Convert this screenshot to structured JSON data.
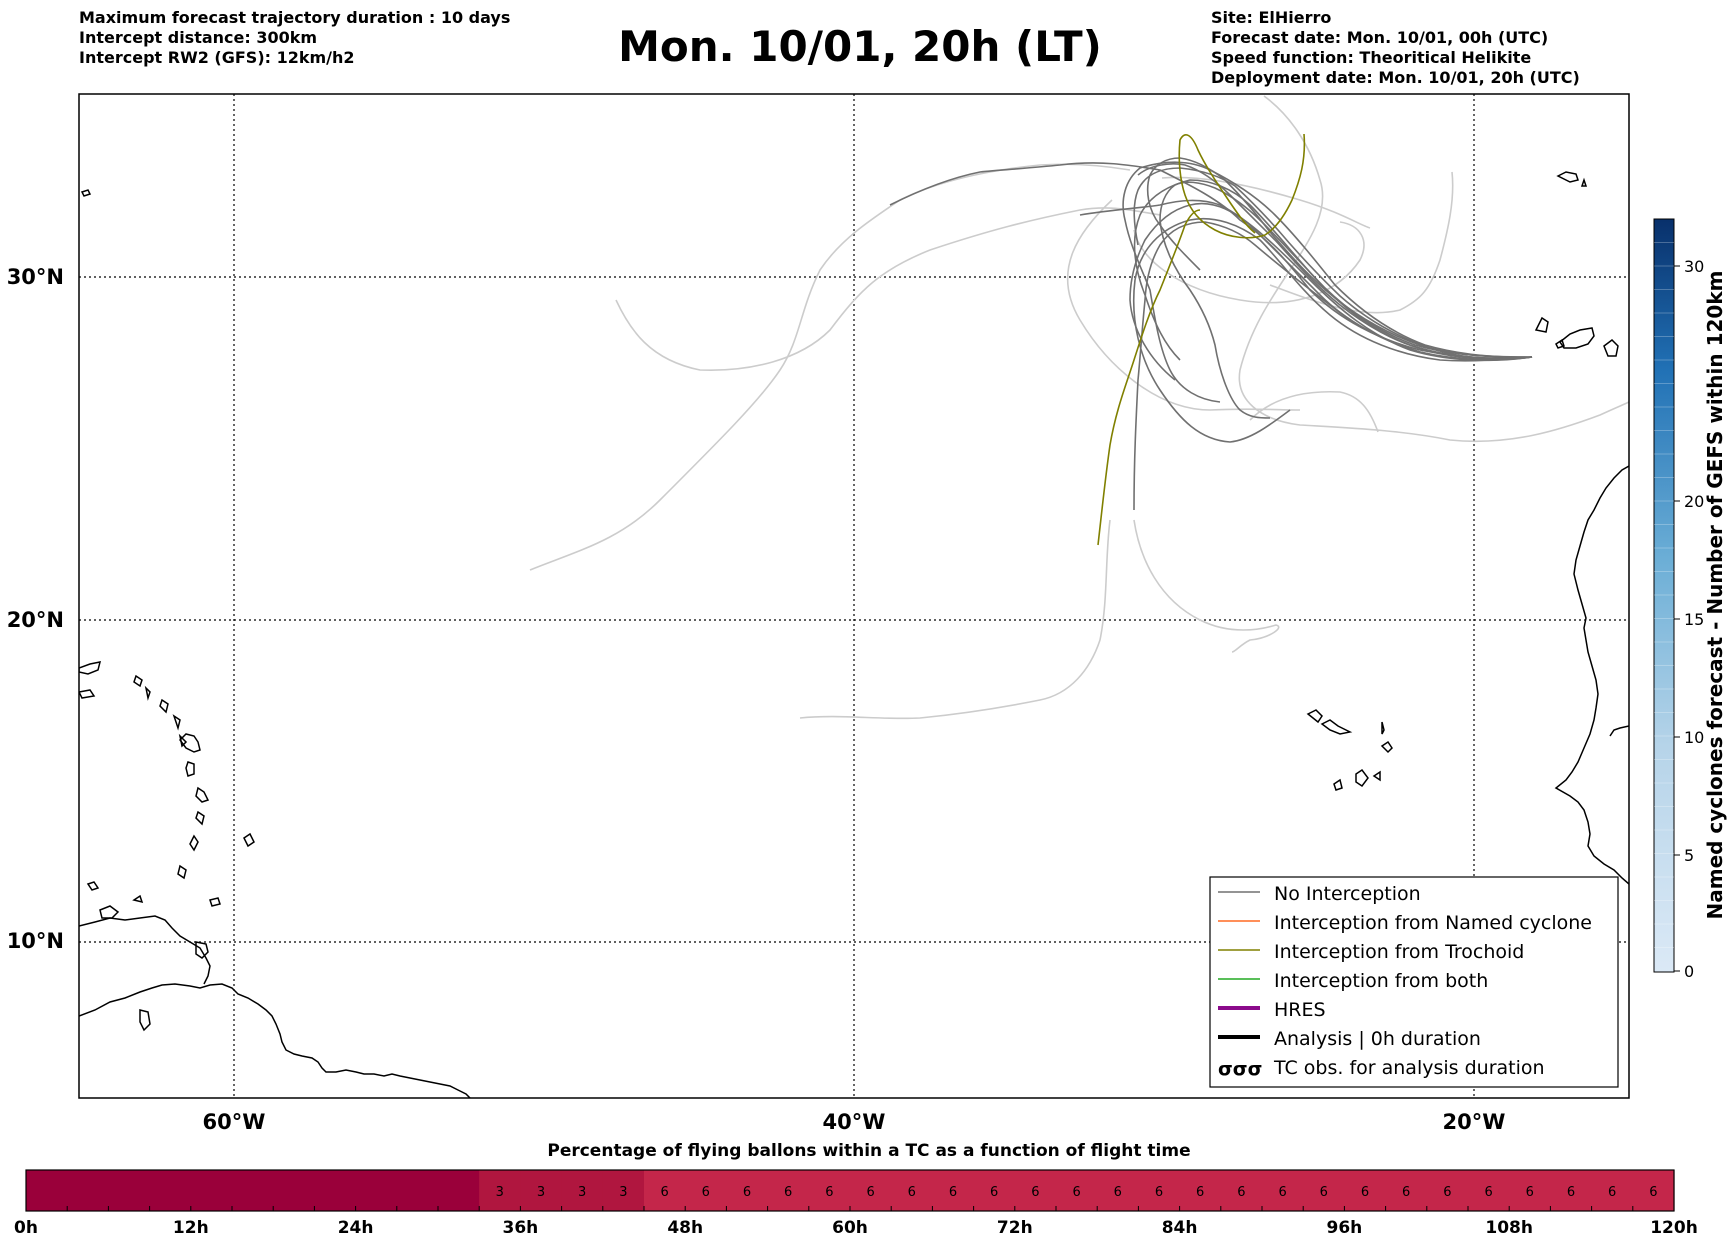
{
  "header_left": [
    "Maximum forecast trajectory duration : 10 days",
    "Intercept distance: 300km",
    "Intercept RW2 (GFS):  12km/h2"
  ],
  "header_right": [
    "Site: ElHierro",
    "Forecast date: Mon. 10/01, 00h (UTC)",
    "Speed function: Theoritical Helikite",
    "Deployment date: Mon. 10/01, 20h (UTC)"
  ],
  "title": "Mon. 10/01, 20h (LT)",
  "map": {
    "lat_labels": [
      "30°N",
      "20°N",
      "10°N"
    ],
    "lon_labels": [
      "60°W",
      "40°W",
      "20°W"
    ],
    "colors": {
      "no_interception": "#707070",
      "light_track": "#cccccc",
      "named_cyclone": "#ff6a22",
      "trochoid": "#808000",
      "both": "#22aa22",
      "hres": "#8b0a8b",
      "analysis": "#000000",
      "coast": "#000000"
    }
  },
  "legend": {
    "items": [
      {
        "label": "No Interception",
        "style": "gray-line"
      },
      {
        "label": "Interception from Named cyclone",
        "style": "orange-line"
      },
      {
        "label": "Interception from Trochoid",
        "style": "olive-line"
      },
      {
        "label": "Interception from both",
        "style": "green-line"
      },
      {
        "label": "HRES",
        "style": "purple-thick-line"
      },
      {
        "label": "Analysis | 0h duration",
        "style": "black-thick-line"
      },
      {
        "label": "TC obs. for analysis duration",
        "style": "cyclone-symbols",
        "symbols": "σσσ"
      }
    ]
  },
  "colorbar": {
    "label": "Named cyclones forecast - Number of GEFS within 120km",
    "ticks": [
      "0",
      "5",
      "10",
      "15",
      "20",
      "30"
    ],
    "colors": [
      "#dbe9f6",
      "#08306b"
    ]
  },
  "percentage_bar": {
    "title": "Percentage of flying ballons within a TC as a function of flight time",
    "tick_labels": [
      "0h",
      "12h",
      "24h",
      "36h",
      "48h",
      "60h",
      "72h",
      "84h",
      "96h",
      "108h",
      "120h"
    ],
    "values": [
      0,
      0,
      0,
      0,
      0,
      0,
      0,
      0,
      0,
      0,
      0,
      3,
      3,
      3,
      3,
      6,
      6,
      6,
      6,
      6,
      6,
      6,
      6,
      6,
      6,
      6,
      6,
      6,
      6,
      6,
      6,
      6,
      6,
      6,
      6,
      6,
      6,
      6,
      6,
      6
    ],
    "colors": {
      "0": "#9a003a",
      "3": "#b0163f",
      "6": "#c4264a"
    }
  }
}
